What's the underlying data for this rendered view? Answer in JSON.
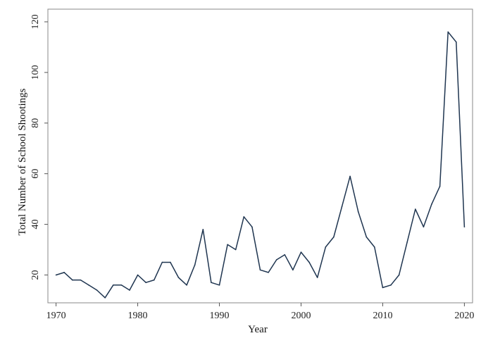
{
  "chart_data": {
    "type": "line",
    "title": "",
    "xlabel": "Year",
    "ylabel": "Total Number of School Shootings",
    "xlim": [
      1969,
      2021
    ],
    "ylim": [
      9,
      125
    ],
    "xticks": [
      1970,
      1980,
      1990,
      2000,
      2010,
      2020
    ],
    "yticks": [
      20,
      40,
      60,
      80,
      100,
      120
    ],
    "grid": false,
    "legend": "none",
    "line_color": "#1f3550",
    "x": [
      1970,
      1971,
      1972,
      1973,
      1974,
      1975,
      1976,
      1977,
      1978,
      1979,
      1980,
      1981,
      1982,
      1983,
      1984,
      1985,
      1986,
      1987,
      1988,
      1989,
      1990,
      1991,
      1992,
      1993,
      1994,
      1995,
      1996,
      1997,
      1998,
      1999,
      2000,
      2001,
      2002,
      2003,
      2004,
      2005,
      2006,
      2007,
      2008,
      2009,
      2010,
      2011,
      2012,
      2013,
      2014,
      2015,
      2016,
      2017,
      2018,
      2019,
      2020
    ],
    "series": [
      {
        "values": [
          20,
          21,
          18,
          18,
          16,
          14,
          11,
          16,
          16,
          14,
          20,
          17,
          18,
          25,
          25,
          19,
          16,
          24,
          38,
          17,
          16,
          32,
          30,
          43,
          39,
          22,
          21,
          26,
          28,
          22,
          29,
          25,
          19,
          31,
          35,
          47,
          59,
          45,
          35,
          31,
          15,
          16,
          20,
          33,
          46,
          39,
          48,
          55,
          116,
          112,
          39
        ]
      }
    ]
  }
}
